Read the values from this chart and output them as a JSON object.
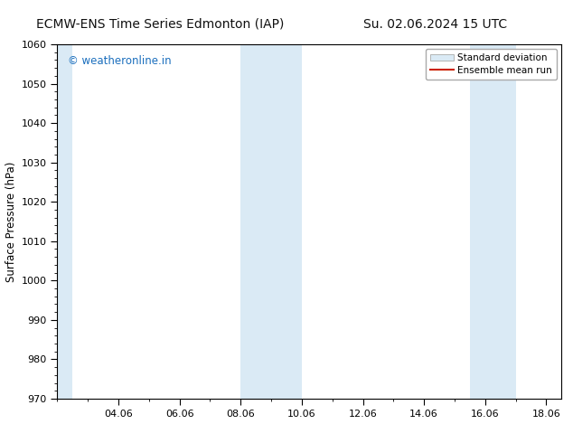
{
  "title_left": "ECMW-ENS Time Series Edmonton (IAP)",
  "title_right": "Su. 02.06.2024 15 UTC",
  "ylabel": "Surface Pressure (hPa)",
  "ylim": [
    970,
    1060
  ],
  "yticks": [
    970,
    980,
    990,
    1000,
    1010,
    1020,
    1030,
    1040,
    1050,
    1060
  ],
  "xlim_start": 2.0,
  "xlim_end": 18.5,
  "xtick_labels": [
    "04.06",
    "06.06",
    "08.06",
    "10.06",
    "12.06",
    "14.06",
    "16.06",
    "18.06"
  ],
  "xtick_positions": [
    4,
    6,
    8,
    10,
    12,
    14,
    16,
    18
  ],
  "shaded_bands": [
    {
      "x_start": 2.0,
      "x_end": 2.5,
      "color": "#daeaf5"
    },
    {
      "x_start": 8.0,
      "x_end": 10.0,
      "color": "#daeaf5"
    },
    {
      "x_start": 15.5,
      "x_end": 17.0,
      "color": "#daeaf5"
    }
  ],
  "watermark_text": "© weatheronline.in",
  "watermark_color": "#1a6ebd",
  "legend_std_facecolor": "#daeaf5",
  "legend_std_edgecolor": "#aaaaaa",
  "legend_mean_color": "#cc2200",
  "bg_color": "#ffffff",
  "plot_bg_color": "#ffffff",
  "spine_color": "#000000",
  "title_fontsize": 10,
  "label_fontsize": 8.5,
  "tick_fontsize": 8,
  "watermark_fontsize": 8.5,
  "legend_fontsize": 7.5
}
